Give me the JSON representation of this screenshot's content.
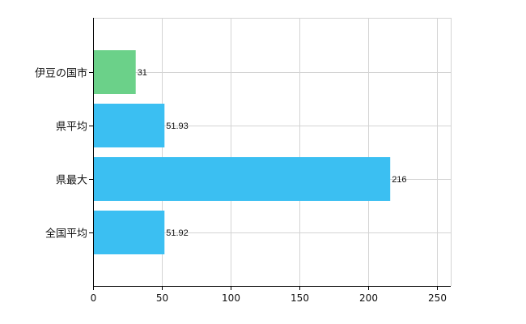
{
  "chart_data": {
    "type": "bar",
    "orientation": "horizontal",
    "categories": [
      "伊豆の国市",
      "県平均",
      "県最大",
      "全国平均"
    ],
    "values": [
      31,
      51.93,
      216,
      51.92
    ],
    "data_labels": [
      "31",
      "51.93",
      "216",
      "51.92"
    ],
    "bar_colors": [
      "#6bd189",
      "#3bbff2",
      "#3bbff2",
      "#3bbff2"
    ],
    "xlim": [
      0,
      260
    ],
    "xticks": [
      0,
      50,
      100,
      150,
      200,
      250
    ],
    "grid": true,
    "grid_color": "#d4d4d4",
    "axis_color": "#000000"
  }
}
